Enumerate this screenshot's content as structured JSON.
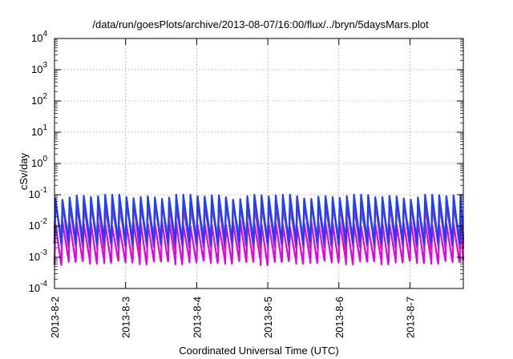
{
  "chart_data": {
    "type": "line",
    "title": "/data/run/goesPlots/archive/2013-08-07/16:00/flux/../bryn/5daysMars.plot",
    "xlabel": "Coordinated Universal Time (UTC)",
    "ylabel": "cSv/day",
    "yscale": "log",
    "ylim": [
      0.0001,
      10000
    ],
    "y_ticks": [
      {
        "base": "10",
        "exp": "-4"
      },
      {
        "base": "10",
        "exp": "-3"
      },
      {
        "base": "10",
        "exp": "-2"
      },
      {
        "base": "10",
        "exp": "-1"
      },
      {
        "base": "10",
        "exp": "0"
      },
      {
        "base": "10",
        "exp": "1"
      },
      {
        "base": "10",
        "exp": "2"
      },
      {
        "base": "10",
        "exp": "3"
      },
      {
        "base": "10",
        "exp": "4"
      }
    ],
    "x_ticks": [
      "2013-8-2",
      "2013-8-3",
      "2013-8-4",
      "2013-8-5",
      "2013-8-6",
      "2013-8-7"
    ],
    "x_range_days": [
      0,
      5.75
    ],
    "grid": true,
    "legend": "none",
    "cycle_hours": 2.4,
    "series": [
      {
        "color": "#1f3fff",
        "peak": 0.09,
        "trough": 0.003
      },
      {
        "color": "#8a2be2",
        "peak": 0.075,
        "trough": 0.0025
      },
      {
        "color": "#d22080",
        "peak": 0.06,
        "trough": 0.0022
      },
      {
        "color": "#1ec8c8",
        "peak": 0.035,
        "trough": 0.005
      },
      {
        "color": "#e000e0",
        "peak": 0.012,
        "trough": 0.0007
      }
    ]
  }
}
